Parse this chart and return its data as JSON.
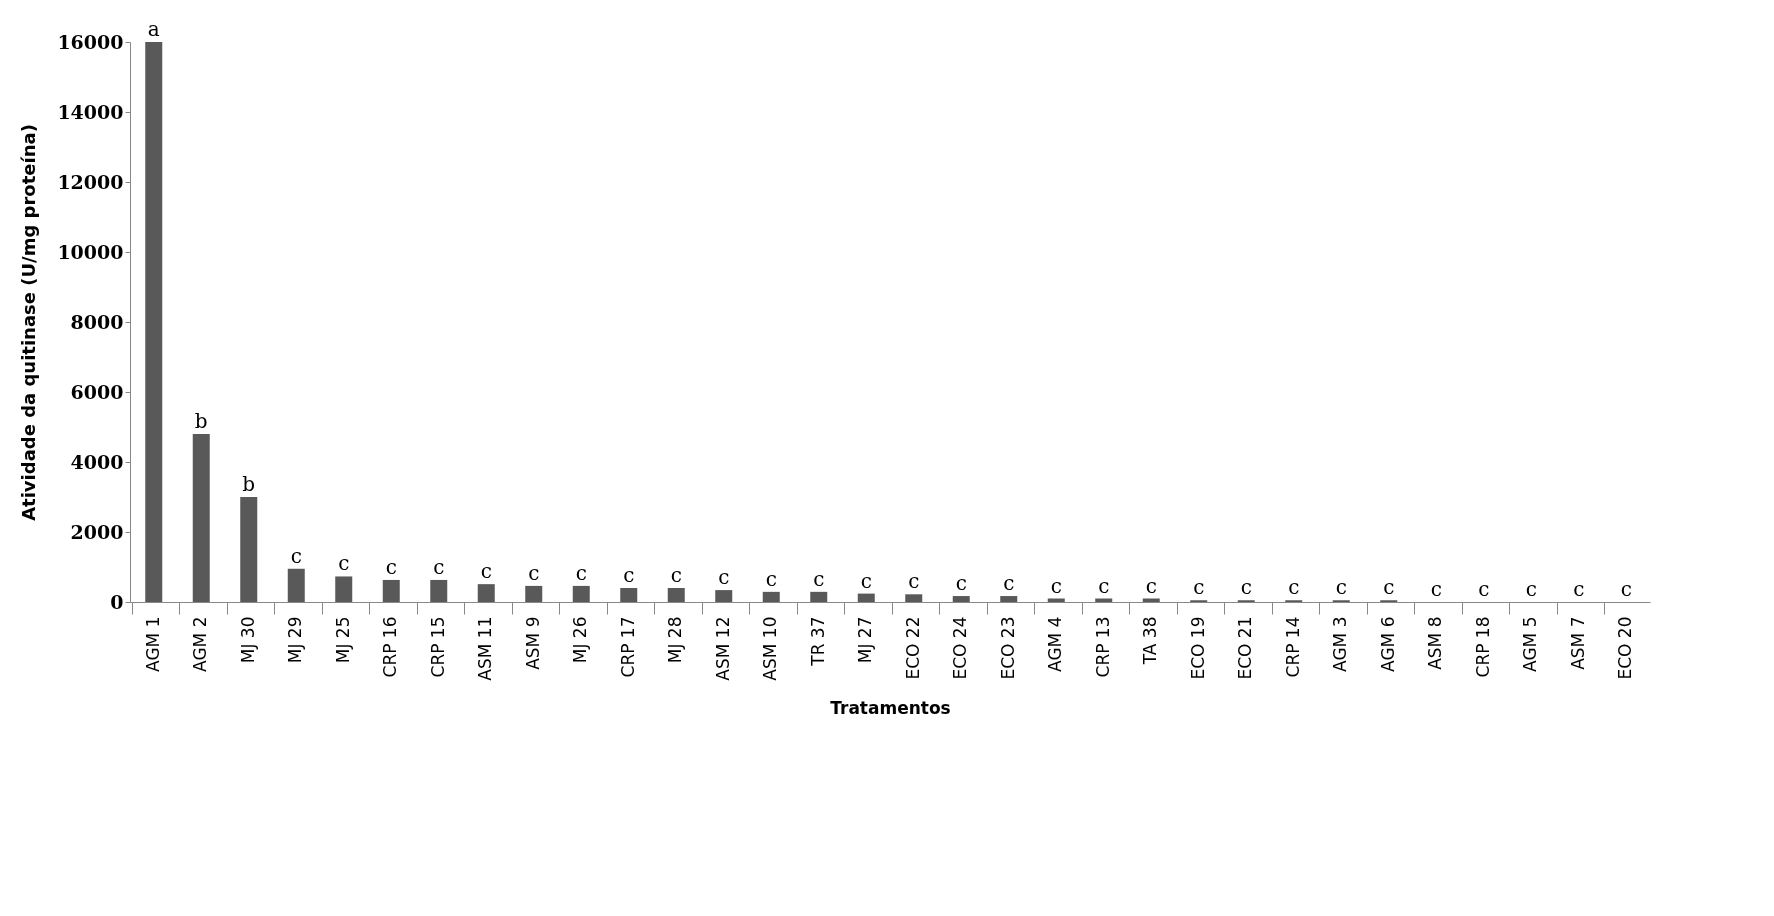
{
  "chart_data": {
    "type": "bar",
    "xlabel": "Tratamentos",
    "ylabel": "Atividade da quitinase (U/mg proteína)",
    "categories": [
      "AGM 1",
      "AGM 2",
      "MJ 30",
      "MJ 29",
      "MJ 25",
      "CRP 16",
      "CRP 15",
      "ASM 11",
      "ASM 9",
      "MJ 26",
      "CRP 17",
      "MJ 28",
      "ASM 12",
      "ASM 10",
      "TR 37",
      "MJ 27",
      "ECO 22",
      "ECO 24",
      "ECO 23",
      "AGM 4",
      "CRP 13",
      "TA 38",
      "ECO 19",
      "ECO 21",
      "CRP 14",
      "AGM 3",
      "AGM 6",
      "ASM 8",
      "CRP 18",
      "AGM 5",
      "ASM 7",
      "ECO 20"
    ],
    "values": [
      16000,
      4800,
      3000,
      950,
      730,
      630,
      630,
      510,
      460,
      460,
      400,
      400,
      340,
      290,
      290,
      240,
      220,
      170,
      170,
      100,
      100,
      100,
      50,
      50,
      50,
      50,
      50,
      0,
      0,
      0,
      0,
      0
    ],
    "value_labels": [
      "a",
      "b",
      "b",
      "c",
      "c",
      "c",
      "c",
      "c",
      "c",
      "c",
      "c",
      "c",
      "c",
      "c",
      "c",
      "c",
      "c",
      "c",
      "c",
      "c",
      "c",
      "c",
      "c",
      "c",
      "c",
      "c",
      "c",
      "c",
      "c",
      "c",
      "c",
      "c"
    ],
    "color": "#595959",
    "ylim": [
      0,
      16000
    ],
    "yticks": [
      0,
      2000,
      4000,
      6000,
      8000,
      10000,
      12000,
      14000,
      16000
    ],
    "grid": false
  }
}
